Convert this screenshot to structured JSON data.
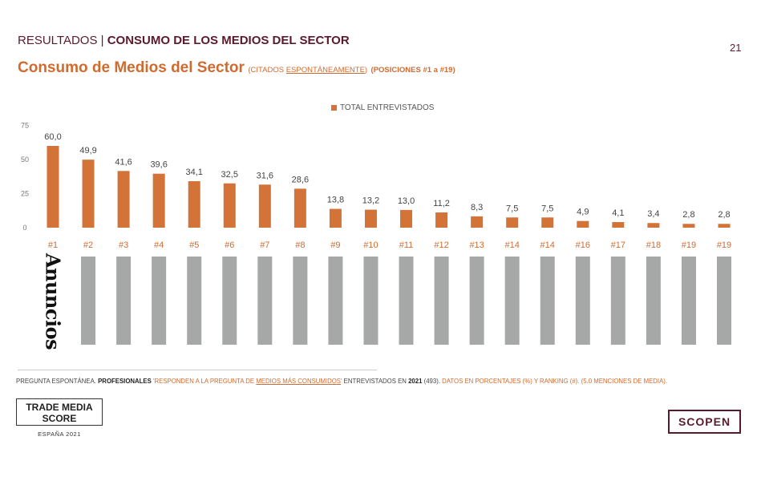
{
  "header": {
    "section": "RESULTADOS",
    "separator": " | ",
    "title": "CONSUMO DE LOS MEDIOS DEL SECTOR",
    "page_number": "21"
  },
  "subtitle": {
    "main": "Consumo de Medios del Sector",
    "cited_prefix": "(CITADOS ",
    "cited_word": "ESPONTÁNEAMENTE",
    "cited_suffix": ")",
    "positions": "(POSICIONES #1 a #19)"
  },
  "colors": {
    "accent": "#d47338",
    "header": "#5b1a2c",
    "placeholder": "#a6a8a7"
  },
  "chart_data": {
    "type": "bar",
    "title": "Consumo de Medios del Sector",
    "categories": [
      "#1",
      "#2",
      "#3",
      "#4",
      "#5",
      "#6",
      "#7",
      "#8",
      "#9",
      "#10",
      "#11",
      "#12",
      "#13",
      "#14",
      "#14",
      "#16",
      "#17",
      "#18",
      "#19",
      "#19"
    ],
    "series": [
      {
        "name": "TOTAL ENTREVISTADOS",
        "values": [
          60.0,
          49.9,
          41.6,
          39.6,
          34.1,
          32.5,
          31.6,
          28.6,
          13.8,
          13.2,
          13.0,
          11.2,
          8.3,
          7.5,
          7.5,
          4.9,
          4.1,
          3.4,
          2.8,
          2.8
        ],
        "labels": [
          "60,0",
          "49,9",
          "41,6",
          "39,6",
          "34,1",
          "32,5",
          "31,6",
          "28,6",
          "13,8",
          "13,2",
          "13,0",
          "11,2",
          "8,3",
          "7,5",
          "7,5",
          "4,9",
          "4,1",
          "3,4",
          "2,8",
          "2,8"
        ]
      }
    ],
    "yticks": [
      "0",
      "25",
      "50",
      "75"
    ],
    "ylim": [
      0,
      75
    ],
    "legend": "TOTAL ENTREVISTADOS",
    "legend_position": "top-center",
    "grid": false
  },
  "brand_logo": {
    "text": "Anuncios"
  },
  "footnote": {
    "p1": "PREGUNTA ESPONTÁNEA. ",
    "p2": "PROFESIONALES",
    "p3": " 'RESPONDEN A LA PREGUNTA DE ",
    "p4": "MEDIOS MÁS CONSUMIDOS",
    "p5": "' ",
    "p6": "ENTREVISTADOS EN ",
    "p7": "2021",
    "p8": " (493). ",
    "p9": "DATOS EN PORCENTAJES (%) Y RANKING (#). (5.0 MENCIONES DE MEDIA)."
  },
  "footer": {
    "tms_line1": "TRADE MEDIA",
    "tms_line2": "SCORE",
    "tms_country": "ESPAÑA 2021",
    "scopen": "SCOPEN"
  }
}
